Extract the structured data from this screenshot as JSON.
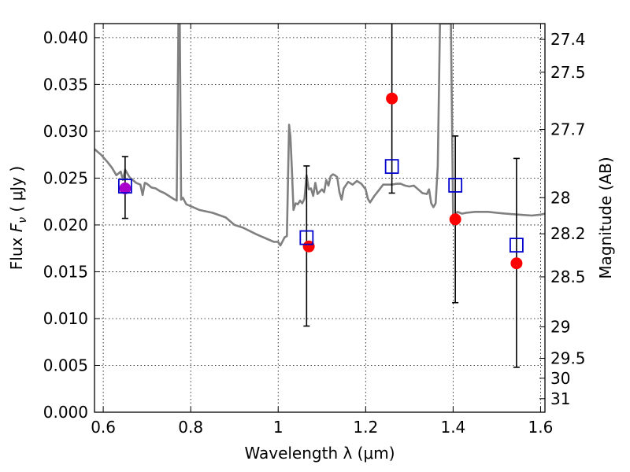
{
  "chart_data": {
    "type": "scatter",
    "xlabel": "Wavelength  λ (μm)",
    "ylabel": "Flux  Fν ( μJy )",
    "y2label": "Magnitude (AB)",
    "xlim": [
      0.58,
      1.61
    ],
    "ylim": [
      0.0,
      0.0415
    ],
    "grid": true,
    "x_ticks": [
      {
        "value": 0.6,
        "label": "0.6"
      },
      {
        "value": 0.8,
        "label": "0.8"
      },
      {
        "value": 1.0,
        "label": "1"
      },
      {
        "value": 1.2,
        "label": "1.2"
      },
      {
        "value": 1.4,
        "label": "1.4"
      },
      {
        "value": 1.6,
        "label": "1.6"
      }
    ],
    "y_ticks": [
      {
        "value": 0.0,
        "label": "0.000"
      },
      {
        "value": 0.005,
        "label": "0.005"
      },
      {
        "value": 0.01,
        "label": "0.010"
      },
      {
        "value": 0.015,
        "label": "0.015"
      },
      {
        "value": 0.02,
        "label": "0.020"
      },
      {
        "value": 0.025,
        "label": "0.025"
      },
      {
        "value": 0.03,
        "label": "0.030"
      },
      {
        "value": 0.035,
        "label": "0.035"
      },
      {
        "value": 0.04,
        "label": "0.040"
      }
    ],
    "y2_ticks": [
      {
        "value": 27.4,
        "label": "27.4"
      },
      {
        "value": 27.5,
        "label": "27.5"
      },
      {
        "value": 27.7,
        "label": "27.7"
      },
      {
        "value": 28.0,
        "label": "28"
      },
      {
        "value": 28.2,
        "label": "28.2"
      },
      {
        "value": 28.5,
        "label": "28.5"
      },
      {
        "value": 29.0,
        "label": "29"
      },
      {
        "value": 29.5,
        "label": "29.5"
      },
      {
        "value": 30.0,
        "label": "30"
      },
      {
        "value": 31.0,
        "label": "31"
      }
    ],
    "template_spectrum": {
      "color": "#808080",
      "x": [
        0.58,
        0.595,
        0.61,
        0.62,
        0.63,
        0.64,
        0.645,
        0.65,
        0.66,
        0.67,
        0.675,
        0.68,
        0.685,
        0.69,
        0.695,
        0.7,
        0.71,
        0.72,
        0.73,
        0.74,
        0.75,
        0.76,
        0.768,
        0.772,
        0.775,
        0.778,
        0.782,
        0.79,
        0.8,
        0.82,
        0.85,
        0.88,
        0.9,
        0.92,
        0.95,
        0.98,
        0.99,
        1.0,
        1.005,
        1.015,
        1.02,
        1.025,
        1.028,
        1.031,
        1.035,
        1.04,
        1.045,
        1.05,
        1.055,
        1.06,
        1.065,
        1.07,
        1.075,
        1.08,
        1.085,
        1.09,
        1.1,
        1.105,
        1.11,
        1.115,
        1.12,
        1.125,
        1.13,
        1.135,
        1.14,
        1.145,
        1.15,
        1.16,
        1.17,
        1.18,
        1.19,
        1.2,
        1.205,
        1.21,
        1.22,
        1.23,
        1.24,
        1.25,
        1.26,
        1.27,
        1.28,
        1.29,
        1.3,
        1.31,
        1.32,
        1.33,
        1.34,
        1.345,
        1.35,
        1.355,
        1.36,
        1.365,
        1.37,
        1.375,
        1.38,
        1.385,
        1.39,
        1.395,
        1.4,
        1.41,
        1.42,
        1.43,
        1.45,
        1.48,
        1.5,
        1.52,
        1.55,
        1.58,
        1.6,
        1.61
      ],
      "y": [
        0.0281,
        0.0275,
        0.0267,
        0.0261,
        0.0253,
        0.0257,
        0.0248,
        0.0259,
        0.0251,
        0.0247,
        0.0245,
        0.0244,
        0.0243,
        0.0232,
        0.0245,
        0.0244,
        0.024,
        0.0239,
        0.0236,
        0.0234,
        0.0231,
        0.0228,
        0.0226,
        0.0415,
        0.0415,
        0.0227,
        0.0229,
        0.0222,
        0.022,
        0.0216,
        0.0213,
        0.0208,
        0.02,
        0.0197,
        0.019,
        0.0184,
        0.0182,
        0.0182,
        0.0178,
        0.0187,
        0.0188,
        0.0307,
        0.0294,
        0.0262,
        0.0216,
        0.0223,
        0.0222,
        0.0226,
        0.0223,
        0.0228,
        0.0253,
        0.0238,
        0.0239,
        0.0231,
        0.0245,
        0.0233,
        0.0238,
        0.0235,
        0.0248,
        0.0242,
        0.0252,
        0.0254,
        0.0253,
        0.0251,
        0.0235,
        0.0227,
        0.0239,
        0.0246,
        0.0243,
        0.0247,
        0.0244,
        0.0238,
        0.0228,
        0.0224,
        0.0231,
        0.0237,
        0.0243,
        0.0243,
        0.0243,
        0.0244,
        0.0244,
        0.0242,
        0.0241,
        0.0242,
        0.0238,
        0.0234,
        0.0233,
        0.0238,
        0.0223,
        0.0219,
        0.0223,
        0.0263,
        0.0415,
        0.0415,
        0.0415,
        0.0415,
        0.0415,
        0.0415,
        0.0207,
        0.0214,
        0.0212,
        0.0213,
        0.0214,
        0.0214,
        0.0213,
        0.0212,
        0.0211,
        0.021,
        0.0211,
        0.0212
      ]
    },
    "observed_points": {
      "color": "#0000cc",
      "marker": "open-square",
      "x": [
        0.65,
        1.065,
        1.26,
        1.405,
        1.545
      ],
      "y": [
        0.0241,
        0.0186,
        0.0262,
        0.0242,
        0.0178
      ],
      "yerr": [
        [
          0.0207,
          0.0273
        ],
        [
          0.0092,
          0.0263
        ],
        [
          0.0234,
          0.0415
        ],
        [
          0.0117,
          0.0295
        ],
        [
          0.0048,
          0.0271
        ]
      ]
    },
    "model_points": {
      "color": "#ff0000",
      "marker": "filled-circle",
      "x": [
        0.65,
        1.07,
        1.26,
        1.405,
        1.545
      ],
      "y": [
        0.0239,
        0.0177,
        0.0335,
        0.0206,
        0.0159
      ],
      "overlap_color": "#aa00cc"
    }
  }
}
